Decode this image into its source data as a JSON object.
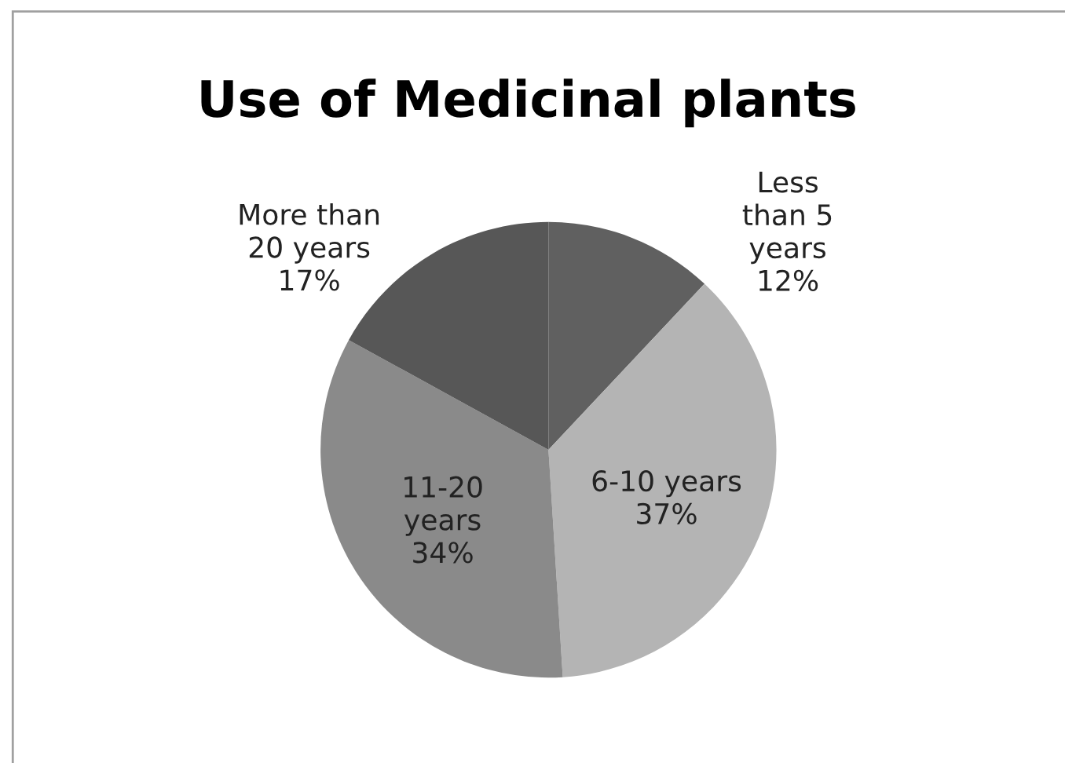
{
  "chart_data": {
    "type": "pie",
    "title": "Use of Medicinal plants",
    "categories": [
      "Less\nthan 5\nyears",
      "6-10 years",
      "11-20\nyears",
      "More than\n20 years"
    ],
    "values": [
      12,
      37,
      34,
      17
    ],
    "colors": [
      "#606060",
      "#b4b4b4",
      "#8a8a8a",
      "#575757"
    ],
    "value_labels": [
      "12%",
      "37%",
      "34%",
      "17%"
    ],
    "legend": false
  }
}
